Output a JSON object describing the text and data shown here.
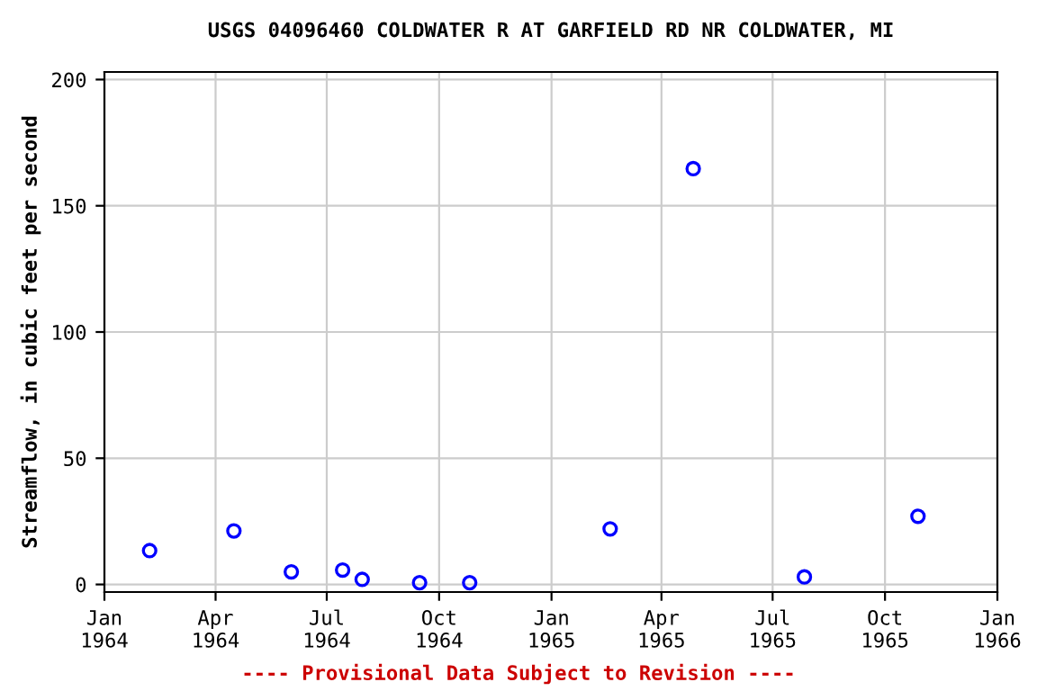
{
  "chart_data": {
    "type": "scatter",
    "title": "USGS 04096460 COLDWATER R AT GARFIELD RD NR COLDWATER, MI",
    "ylabel": "Streamflow, in cubic feet per second",
    "annotations": [
      "---- Provisional Data Subject to Revision ----"
    ],
    "x": [
      "1964-02-07",
      "1964-04-16",
      "1964-06-02",
      "1964-07-14",
      "1964-07-30",
      "1964-09-15",
      "1964-10-26",
      "1965-02-18",
      "1965-04-27",
      "1965-07-27",
      "1965-10-28"
    ],
    "series": [
      {
        "color": "#0000ff",
        "values": [
          13.4,
          21.2,
          5,
          5.7,
          2,
          0.7,
          0.7,
          22,
          164.7,
          3,
          27
        ]
      }
    ],
    "marker": "circle",
    "xlim": [
      "1964-01-01",
      "1966-01-01"
    ],
    "xticks": [
      {
        "value": "1964-01-01",
        "label": "Jan\n1964"
      },
      {
        "value": "1964-04-01",
        "label": "Apr\n1964"
      },
      {
        "value": "1964-07-01",
        "label": "Jul\n1964"
      },
      {
        "value": "1964-10-01",
        "label": "Oct\n1964"
      },
      {
        "value": "1965-01-01",
        "label": "Jan\n1965"
      },
      {
        "value": "1965-04-01",
        "label": "Apr\n1965"
      },
      {
        "value": "1965-07-01",
        "label": "Jul\n1965"
      },
      {
        "value": "1965-10-01",
        "label": "Oct\n1965"
      },
      {
        "value": "1966-01-01",
        "label": "Jan\n1966"
      }
    ],
    "ylim": [
      -3,
      203
    ],
    "yticks": [
      0,
      50,
      100,
      150,
      200
    ],
    "grid": true
  }
}
